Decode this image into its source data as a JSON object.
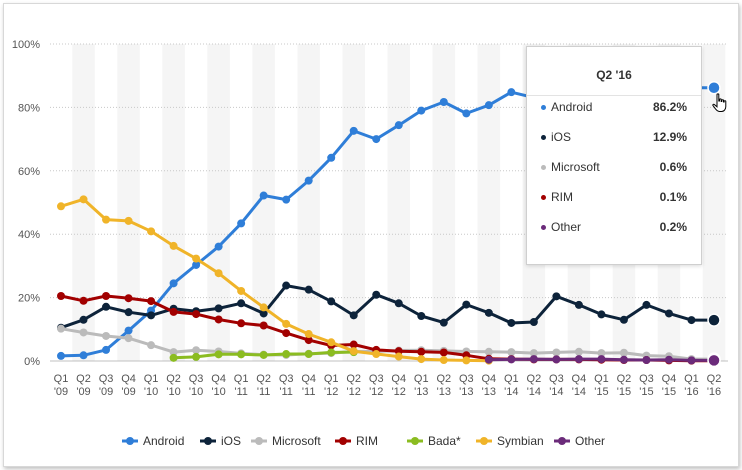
{
  "chart_data": {
    "type": "line",
    "categories": [
      "Q1 '09",
      "Q2 '09",
      "Q3 '09",
      "Q4 '09",
      "Q1 '10",
      "Q2 '10",
      "Q3 '10",
      "Q4 '10",
      "Q1 '11",
      "Q2 '11",
      "Q3 '11",
      "Q4 '11",
      "Q1 '12",
      "Q2 '12",
      "Q3 '12",
      "Q4 '12",
      "Q1 '13",
      "Q2 '13",
      "Q3 '13",
      "Q4 '13",
      "Q1 '14",
      "Q2 '14",
      "Q3 '14",
      "Q4 '14",
      "Q1 '15",
      "Q2 '15",
      "Q3 '15",
      "Q4 '15",
      "Q1 '16",
      "Q2 '16"
    ],
    "ylim": [
      0,
      100
    ],
    "yticks": [
      0,
      20,
      40,
      60,
      80,
      100
    ],
    "ytick_labels": [
      "0%",
      "20%",
      "40%",
      "60%",
      "80%",
      "100%"
    ],
    "series": [
      {
        "name": "Android",
        "color": "#2f7ed8",
        "values": [
          1.6,
          1.8,
          3.5,
          9.6,
          15.9,
          24.5,
          30.3,
          36.1,
          43.4,
          52.2,
          50.9,
          56.9,
          64.1,
          72.6,
          70.0,
          74.4,
          79.0,
          81.7,
          78.1,
          80.7,
          84.8,
          83.1,
          81.5,
          78.0,
          82.8,
          84.7,
          79.6,
          84.1,
          86.2,
          86.2
        ]
      },
      {
        "name": "iOS",
        "color": "#0d233a",
        "values": [
          10.5,
          13.0,
          17.1,
          15.4,
          14.4,
          16.5,
          15.7,
          16.6,
          18.2,
          15.0,
          23.8,
          22.5,
          18.8,
          14.4,
          20.9,
          18.2,
          14.2,
          12.1,
          17.8,
          15.2,
          12.0,
          12.3,
          20.4,
          17.7,
          14.7,
          13.0,
          17.7,
          15.0,
          12.9,
          12.9
        ]
      },
      {
        "name": "Microsoft",
        "color": "#bbbbbb",
        "values": [
          10.2,
          9.0,
          7.9,
          7.2,
          5.0,
          2.8,
          3.4,
          3.0,
          2.4,
          2.0,
          1.9,
          2.3,
          2.5,
          3.0,
          3.0,
          3.3,
          3.4,
          3.2,
          3.0,
          2.9,
          2.8,
          2.5,
          2.7,
          2.9,
          2.5,
          2.6,
          1.7,
          1.5,
          0.6,
          0.6
        ]
      },
      {
        "name": "RIM",
        "color": "#a20000",
        "values": [
          20.5,
          19.0,
          20.5,
          19.8,
          18.9,
          15.5,
          14.8,
          13.1,
          11.9,
          11.2,
          8.8,
          6.6,
          4.9,
          5.2,
          3.5,
          3.1,
          2.9,
          2.7,
          1.8,
          0.7,
          0.6,
          0.5,
          0.5,
          0.5,
          0.4,
          0.3,
          0.3,
          0.2,
          0.1,
          0.1
        ]
      },
      {
        "name": "Bada*",
        "color": "#8bbc21",
        "values": [
          null,
          null,
          null,
          null,
          null,
          1.0,
          1.3,
          2.1,
          2.1,
          1.9,
          2.2,
          2.2,
          2.7,
          2.8,
          null,
          null,
          null,
          null,
          null,
          null,
          null,
          null,
          null,
          null,
          null,
          null,
          null,
          null,
          null,
          null
        ]
      },
      {
        "name": "Symbian",
        "color": "#f0b429",
        "values": [
          48.8,
          51.0,
          44.6,
          44.2,
          40.9,
          36.3,
          32.3,
          27.7,
          22.1,
          16.9,
          11.7,
          8.5,
          5.9,
          3.1,
          2.2,
          1.4,
          0.6,
          0.3,
          0.2,
          0.1,
          null,
          null,
          null,
          null,
          null,
          null,
          null,
          null,
          null,
          null
        ]
      },
      {
        "name": "Other",
        "color": "#6b2b7a",
        "values": [
          null,
          null,
          null,
          null,
          null,
          null,
          null,
          null,
          null,
          null,
          null,
          null,
          null,
          null,
          null,
          null,
          null,
          null,
          null,
          0.4,
          0.5,
          0.6,
          0.5,
          0.6,
          0.6,
          0.4,
          0.3,
          0.4,
          0.2,
          0.2
        ]
      }
    ],
    "grid": true,
    "legend_position": "bottom",
    "tooltip": {
      "title": "Q2 '16",
      "rows": [
        {
          "name": "Android",
          "value": "86.2%",
          "color": "#2f7ed8"
        },
        {
          "name": "iOS",
          "value": "12.9%",
          "color": "#0d233a"
        },
        {
          "name": "Microsoft",
          "value": "0.6%",
          "color": "#bbbbbb"
        },
        {
          "name": "RIM",
          "value": "0.1%",
          "color": "#a20000"
        },
        {
          "name": "Other",
          "value": "0.2%",
          "color": "#6b2b7a"
        }
      ]
    }
  }
}
